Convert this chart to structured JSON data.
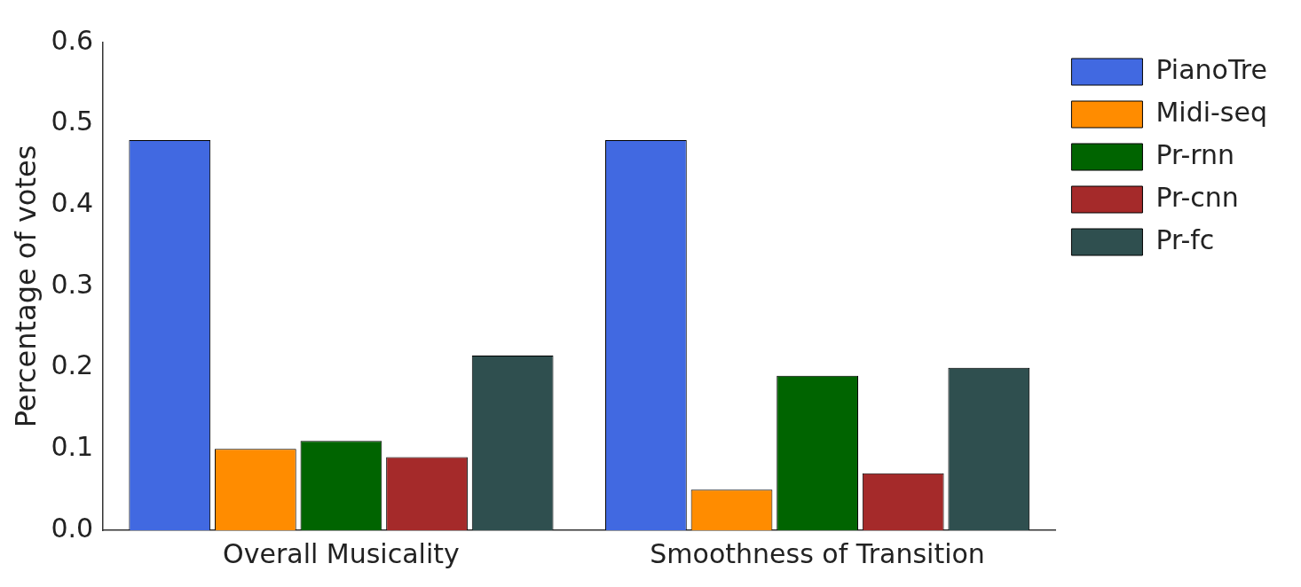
{
  "chart_data": {
    "type": "bar",
    "ylabel": "Percentage of votes",
    "categories": [
      "Overall Musicality",
      "Smoothness of Transition"
    ],
    "series": [
      {
        "name": "PianoTre",
        "color": "#4169e1",
        "values": [
          0.48,
          0.48
        ]
      },
      {
        "name": "Midi-seq",
        "color": "#ff8c00",
        "values": [
          0.1,
          0.05
        ]
      },
      {
        "name": "Pr-rnn",
        "color": "#006400",
        "values": [
          0.11,
          0.19
        ]
      },
      {
        "name": "Pr-cnn",
        "color": "#a52a2a",
        "values": [
          0.09,
          0.07
        ]
      },
      {
        "name": "Pr-fc",
        "color": "#2f4f4f",
        "values": [
          0.215,
          0.2
        ]
      }
    ],
    "ylim": [
      0,
      0.6
    ],
    "yticks": [
      {
        "value": 0,
        "label": "0.0"
      },
      {
        "value": 0.1,
        "label": "0.1"
      },
      {
        "value": 0.2,
        "label": "0.2"
      },
      {
        "value": 0.3,
        "label": "0.3"
      },
      {
        "value": 0.4,
        "label": "0.4"
      },
      {
        "value": 0.5,
        "label": "0.5"
      },
      {
        "value": 0.6,
        "label": "0.6"
      }
    ],
    "grid": false,
    "legend": "top right"
  }
}
